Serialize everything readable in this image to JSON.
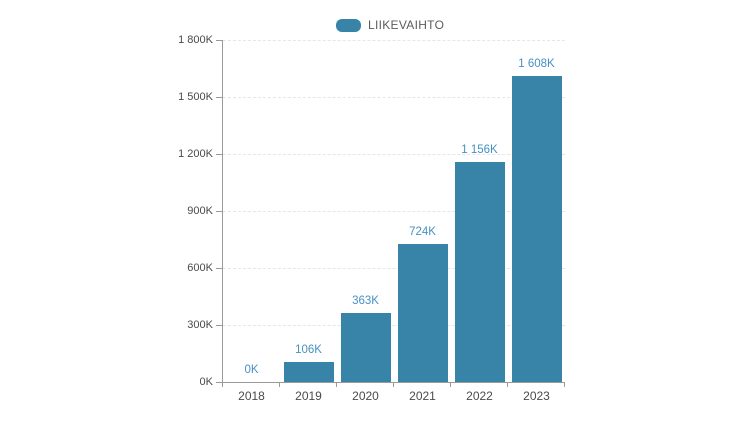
{
  "chart_data": {
    "type": "bar",
    "title": "",
    "xlabel": "",
    "ylabel": "",
    "series_name": "LIIKEVAIHTO",
    "legend": [
      "LIIKEVAIHTO"
    ],
    "legend_position": "top-center",
    "categories": [
      "2018",
      "2019",
      "2020",
      "2021",
      "2022",
      "2023"
    ],
    "values_k": [
      0,
      106,
      363,
      724,
      1156,
      1608
    ],
    "value_labels": [
      "0K",
      "106K",
      "363K",
      "724K",
      "1 156K",
      "1 608K"
    ],
    "ylim_k": [
      0,
      1800
    ],
    "ytick_step_k": 300,
    "ytick_labels": [
      "0K",
      "300K",
      "600K",
      "900K",
      "1 200K",
      "1 500K",
      "1 800K"
    ],
    "grid": "horizontal-dashed",
    "colors": {
      "bar": "#3884a9",
      "value_label": "#4691c3",
      "axis_line": "#9a9a9a",
      "gridline": "#e6e6e6",
      "axis_text": "#4a4a4a",
      "legend_text": "#5c5c5c",
      "background": "#ffffff"
    }
  }
}
